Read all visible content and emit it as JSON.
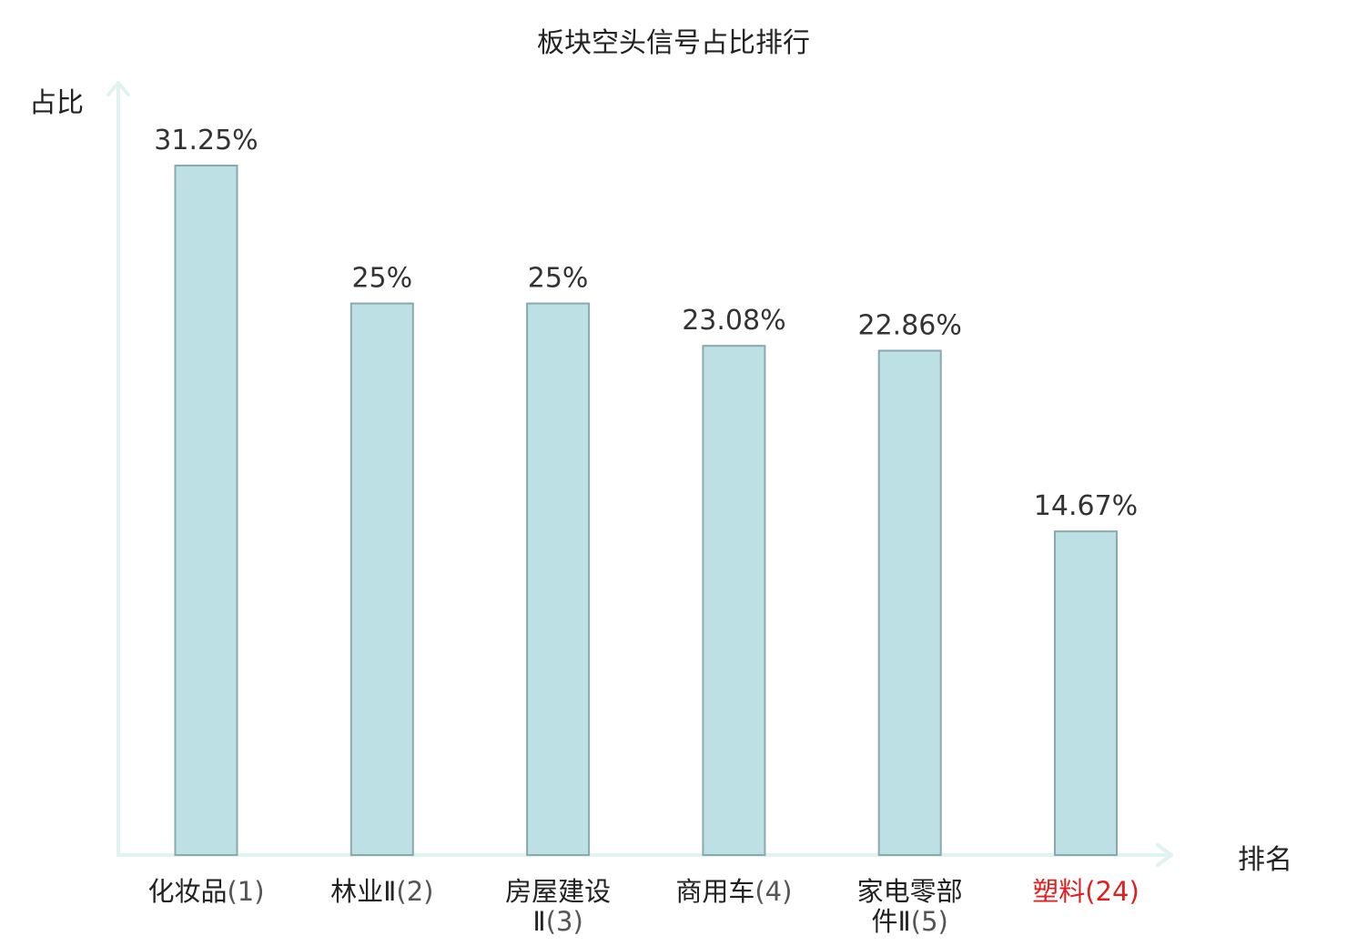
{
  "chart_data": {
    "type": "bar",
    "title": "板块空头信号占比排行",
    "ylabel": "占比",
    "xlabel": "排名",
    "ylim": [
      0,
      0.35
    ],
    "grid": false,
    "legend": "none",
    "categories": [
      {
        "name": "化妆品",
        "rank": "(1)",
        "highlight": false
      },
      {
        "name": "林业Ⅱ",
        "rank": "(2)",
        "highlight": false
      },
      {
        "name": "房屋建设Ⅱ",
        "rank": "(3)",
        "highlight": false
      },
      {
        "name": "商用车",
        "rank": "(4)",
        "highlight": false
      },
      {
        "name": "家电零部件Ⅱ",
        "rank": "(5)",
        "highlight": false
      },
      {
        "name": "塑料",
        "rank": "(24)",
        "highlight": true
      }
    ],
    "values": [
      0.3125,
      0.25,
      0.25,
      0.2308,
      0.2286,
      0.1467
    ],
    "value_labels": [
      "31.25%",
      "25%",
      "25%",
      "23.08%",
      "22.86%",
      "14.67%"
    ],
    "colors": {
      "bar_fill": "#bce0e3",
      "bar_stroke": "#8aa9ad",
      "axis": "#dff3f1",
      "highlight_text": "#e02020",
      "value_text": "#333333"
    }
  }
}
